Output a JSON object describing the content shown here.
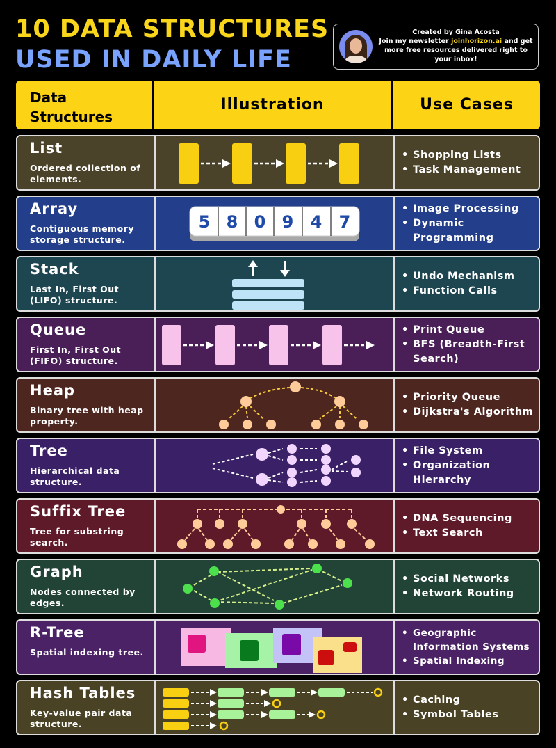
{
  "title": {
    "line1": "10 DATA STRUCTURES",
    "line2": "USED IN DAILY LIFE"
  },
  "creator": {
    "name": "Created by Gina Acosta",
    "line_a": "Join my newsletter ",
    "link": "joinhorizon.ai",
    "line_b": " and get more free resources delivered right to your inbox!"
  },
  "header": {
    "col1": "Data Structures",
    "col2": "Illustration",
    "col3": "Use Cases"
  },
  "colors": {
    "accent": "#fcd415",
    "title_blue": "#7aa2ff"
  },
  "rows": [
    {
      "name": "List",
      "desc": "Ordered collection of elements.",
      "uses": [
        "Shopping Lists",
        "Task Management"
      ],
      "bg": "#4b422a"
    },
    {
      "name": "Array",
      "desc": "Contiguous memory storage structure.",
      "uses": [
        "Image Processing",
        "Dynamic Programming"
      ],
      "bg": "#233e8a",
      "digits": [
        "5",
        "8",
        "0",
        "9",
        "4",
        "7"
      ]
    },
    {
      "name": "Stack",
      "desc": "Last In, First Out (LIFO) structure.",
      "uses": [
        "Undo Mechanism",
        "Function Calls"
      ],
      "bg": "#1d4650"
    },
    {
      "name": "Queue",
      "desc": "First In, First Out (FIFO) structure.",
      "uses": [
        "Print Queue",
        "BFS (Breadth-First Search)"
      ],
      "bg": "#4a1e56"
    },
    {
      "name": "Heap",
      "desc": "Binary tree with heap property.",
      "uses": [
        "Priority Queue",
        "Dijkstra's Algorithm"
      ],
      "bg": "#4e2620"
    },
    {
      "name": "Tree",
      "desc": "Hierarchical data structure.",
      "uses": [
        "File System",
        "Organization Hierarchy"
      ],
      "bg": "#3a2066"
    },
    {
      "name": "Suffix Tree",
      "desc": "Tree for substring search.",
      "uses": [
        "DNA Sequencing",
        "Text Search"
      ],
      "bg": "#5e1a28"
    },
    {
      "name": "Graph",
      "desc": "Nodes connected by edges.",
      "uses": [
        "Social Networks",
        "Network Routing"
      ],
      "bg": "#224436"
    },
    {
      "name": "R-Tree",
      "desc": "Spatial indexing tree.",
      "uses": [
        "Geographic Information Systems",
        "Spatial Indexing"
      ],
      "bg": "#4b2266"
    },
    {
      "name": "Hash Tables",
      "desc": "Key-value pair data structure.",
      "uses": [
        "Caching",
        "Symbol Tables"
      ],
      "bg": "#4a4224"
    }
  ]
}
